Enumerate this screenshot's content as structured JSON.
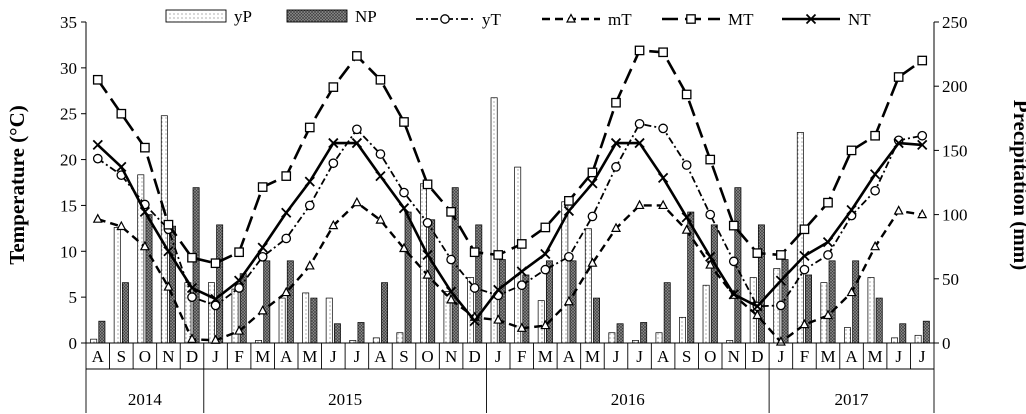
{
  "chart_data": {
    "type": "bar",
    "title": "",
    "ylabel_left": "Temperature (°C)",
    "ylabel_right": "Precipitation (mm)",
    "ylim_left": [
      0,
      35
    ],
    "ylim_right": [
      0,
      250
    ],
    "yticks_left": [
      "0",
      "5",
      "10",
      "15",
      "20",
      "25",
      "30",
      "35"
    ],
    "yticks_right": [
      "0",
      "50",
      "100",
      "150",
      "200",
      "250"
    ],
    "months": [
      "A",
      "S",
      "O",
      "N",
      "D",
      "J",
      "F",
      "M",
      "A",
      "M",
      "J",
      "J",
      "A",
      "S",
      "O",
      "N",
      "D",
      "J",
      "F",
      "M",
      "A",
      "M",
      "J",
      "J",
      "A",
      "S",
      "O",
      "N",
      "D",
      "J",
      "F",
      "M",
      "A",
      "M",
      "J",
      "J"
    ],
    "years": [
      {
        "label": "2014",
        "start": 0,
        "end": 5
      },
      {
        "label": "2015",
        "start": 5,
        "end": 17
      },
      {
        "label": "2016",
        "start": 17,
        "end": 29
      },
      {
        "label": "2017",
        "start": 29,
        "end": 36
      }
    ],
    "legend": [
      "yP",
      "NP",
      "yT",
      "mT",
      "MT",
      "NT"
    ],
    "bar_series": [
      {
        "name": "yP",
        "axis": "right",
        "values": [
          3,
          90,
          131,
          177,
          47,
          47,
          42,
          2,
          35,
          39,
          35,
          2,
          4,
          8,
          124,
          40,
          51,
          191,
          137,
          33,
          110,
          89,
          8,
          2,
          8,
          20,
          45,
          2,
          51,
          58,
          164,
          47,
          12,
          51,
          4,
          6
        ]
      },
      {
        "name": "NP",
        "axis": "right",
        "values": [
          17,
          47,
          100,
          91,
          121,
          92,
          54,
          64,
          64,
          35,
          15,
          16,
          47,
          102,
          96,
          121,
          92,
          65,
          53,
          64,
          64,
          35,
          15,
          16,
          47,
          102,
          92,
          121,
          92,
          65,
          53,
          64,
          64,
          35,
          15,
          17
        ]
      }
    ],
    "line_series": [
      {
        "name": "yT",
        "axis": "left",
        "values": [
          20.1,
          18.3,
          15.1,
          12.4,
          5.0,
          4.1,
          6.0,
          9.4,
          11.4,
          15.0,
          19.6,
          23.3,
          20.6,
          16.4,
          13.1,
          9.1,
          6.0,
          5.2,
          6.3,
          8.0,
          9.4,
          13.8,
          19.2,
          23.9,
          23.4,
          19.4,
          14.0,
          8.9,
          4.0,
          4.1,
          8.0,
          9.6,
          13.9,
          16.6,
          22.1,
          22.6
        ]
      },
      {
        "name": "mT",
        "axis": "left",
        "values": [
          13.5,
          12.7,
          10.5,
          6.1,
          0.4,
          0.3,
          1.3,
          3.5,
          5.5,
          8.4,
          12.8,
          15.3,
          13.4,
          10.3,
          7.4,
          4.7,
          2.8,
          2.5,
          1.6,
          1.9,
          4.5,
          8.7,
          12.5,
          15.0,
          15.0,
          12.3,
          8.5,
          5.2,
          3.0,
          0.1,
          2.0,
          3.0,
          5.5,
          10.5,
          14.4,
          14.0
        ]
      },
      {
        "name": "MT",
        "axis": "left",
        "values": [
          28.7,
          25.0,
          21.3,
          12.9,
          9.3,
          8.7,
          9.9,
          17.0,
          18.2,
          23.5,
          27.9,
          31.3,
          28.7,
          24.1,
          17.3,
          14.3,
          9.9,
          9.6,
          10.8,
          12.6,
          15.5,
          18.6,
          26.2,
          31.9,
          31.7,
          27.1,
          20.0,
          12.8,
          9.8,
          9.6,
          12.4,
          15.3,
          21.0,
          22.6,
          29.0,
          30.8
        ]
      },
      {
        "name": "NT",
        "axis": "left",
        "values": [
          21.6,
          19.2,
          14.3,
          10.0,
          6.0,
          4.8,
          6.8,
          10.4,
          14.2,
          17.6,
          21.8,
          21.8,
          18.2,
          14.7,
          9.6,
          5.6,
          2.4,
          5.8,
          7.8,
          9.7,
          14.4,
          17.4,
          21.8,
          21.8,
          18.0,
          13.7,
          9.4,
          5.3,
          4.0,
          6.8,
          9.5,
          11.0,
          14.5,
          18.4,
          21.8,
          21.6
        ]
      }
    ],
    "grid": false,
    "legend_position": "top"
  },
  "colors": {
    "yP_fill": "#ffffff",
    "NP_fill": "#8c8c8c",
    "line": "#000000"
  }
}
